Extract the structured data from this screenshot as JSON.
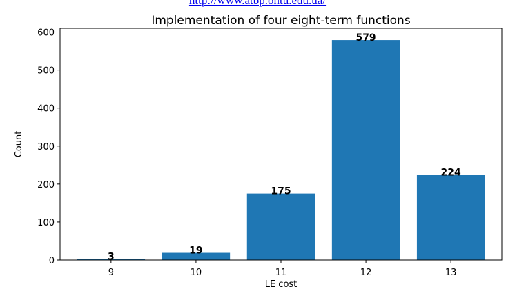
{
  "header": {
    "link_text": "http://www.atbp.ontu.edu.ua/"
  },
  "chart_data": {
    "type": "bar",
    "title": "Implementation of four eight-term functions",
    "xlabel": "LE cost",
    "ylabel": "Count",
    "categories": [
      "9",
      "10",
      "11",
      "12",
      "13"
    ],
    "values": [
      3,
      19,
      175,
      579,
      224
    ],
    "data_labels": [
      "3",
      "19",
      "175",
      "579",
      "224"
    ],
    "ylim": [
      0,
      610
    ],
    "yticks": [
      0,
      100,
      200,
      300,
      400,
      500,
      600
    ],
    "bar_color": "#1f77b4",
    "grid": false
  }
}
